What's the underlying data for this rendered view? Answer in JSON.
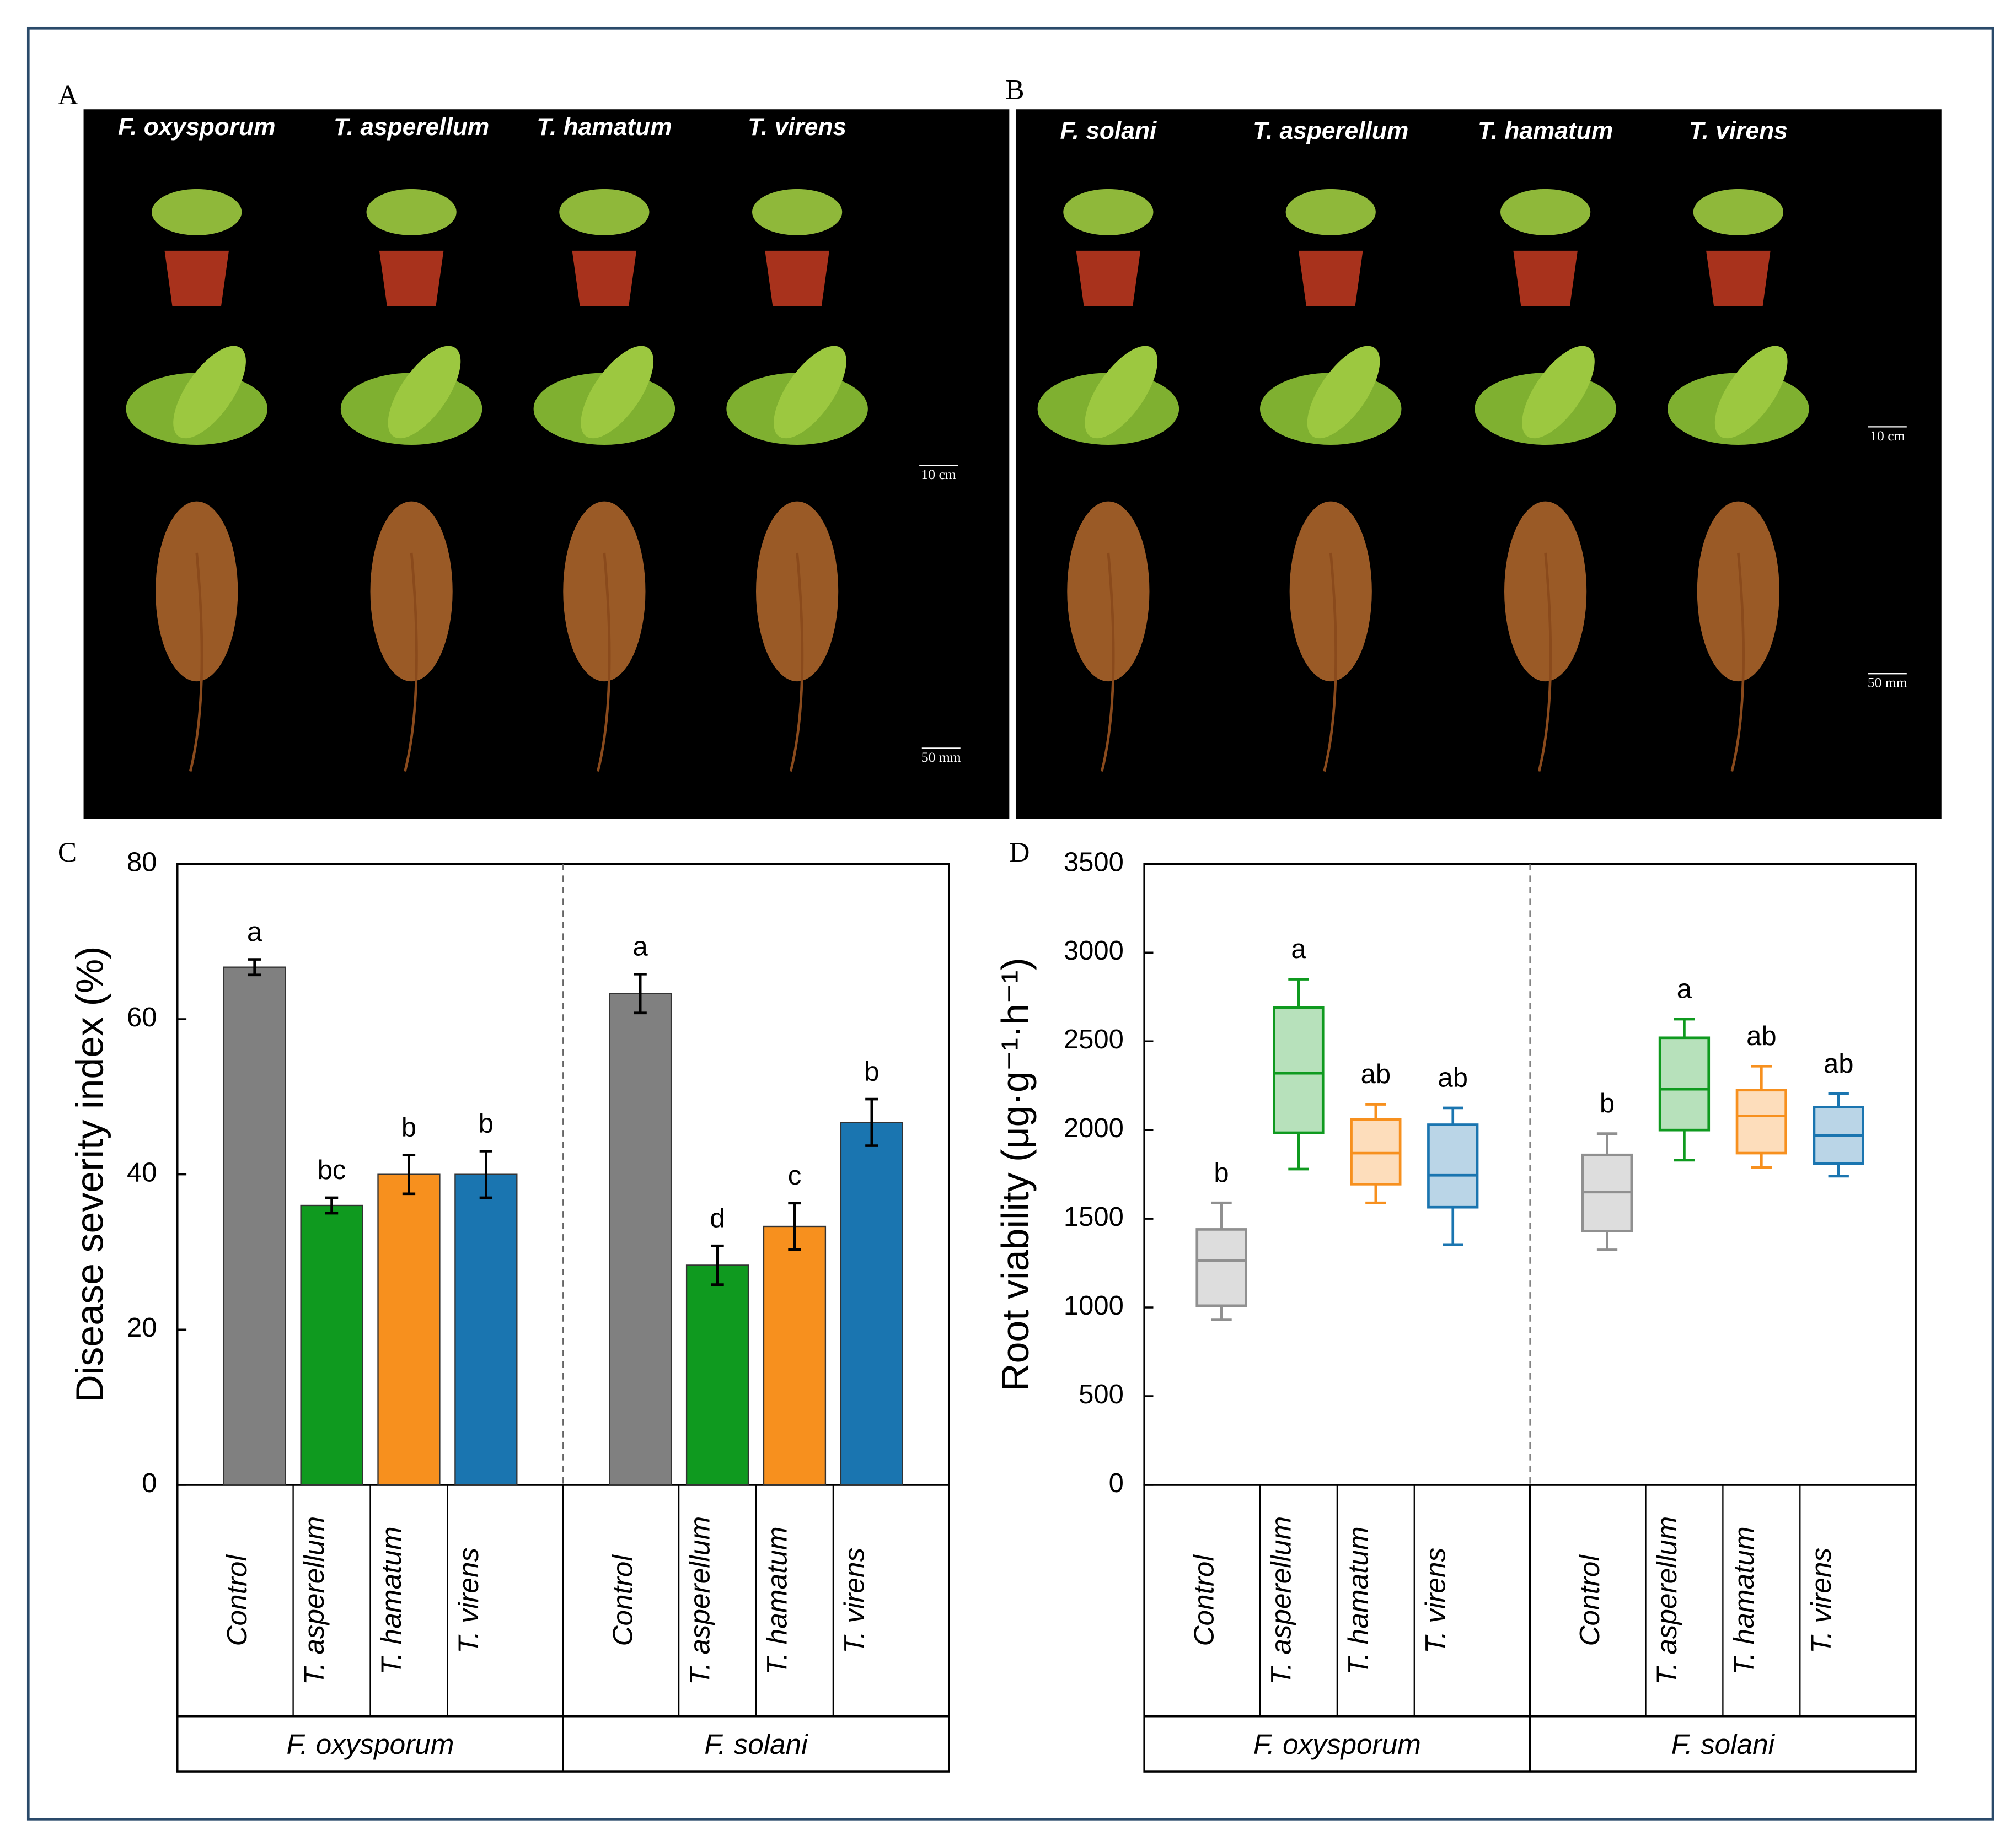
{
  "photo_panels": [
    {
      "label": "A",
      "titles": [
        "F. oxysporum",
        "T. asperellum",
        "T. hamatum",
        "T. virens"
      ],
      "scale_bars": [
        "10 cm",
        "50 mm"
      ]
    },
    {
      "label": "B",
      "titles": [
        "F. solani",
        "T. asperellum",
        "T. hamatum",
        "T. virens"
      ],
      "scale_bars": [
        "10 cm",
        "50 mm"
      ]
    }
  ],
  "chart_data": [
    {
      "type": "bar",
      "panel_label": "C",
      "y_label": "Disease severity index (%)",
      "categories": [
        "Control",
        "T. asperellum",
        "T. hamatum",
        "T. virens",
        "Control",
        "T. asperellum",
        "T. hamatum",
        "T. virens"
      ],
      "groups": [
        "F. oxysporum",
        "F. solani"
      ],
      "values": [
        66.7,
        36,
        40,
        40,
        63.3,
        28.3,
        33.3,
        46.7
      ],
      "errors": [
        1,
        1,
        2.5,
        3,
        2.5,
        2.5,
        3,
        3
      ],
      "colors": [
        "#808080",
        "#0f9a1f",
        "#f7901e",
        "#1a75b0",
        "#808080",
        "#0f9a1f",
        "#f7901e",
        "#1a75b0"
      ],
      "letters": [
        "a",
        "bc",
        "b",
        "b",
        "a",
        "d",
        "c",
        "b"
      ],
      "ylim": [
        0,
        80
      ],
      "yticks": [
        0,
        20,
        40,
        60,
        80
      ]
    },
    {
      "type": "box",
      "panel_label": "D",
      "y_label": "Root viability (μg·g⁻¹·h⁻¹)",
      "categories": [
        "Control",
        "T. asperellum",
        "T. hamatum",
        "T. virens",
        "Control",
        "T. asperellum",
        "T. hamatum",
        "T. virens"
      ],
      "groups": [
        "F. oxysporum",
        "F. solani"
      ],
      "min": [
        930,
        1780,
        1590,
        1355,
        1325,
        1830,
        1790,
        1740
      ],
      "q1": [
        1010,
        1985,
        1695,
        1565,
        1430,
        2000,
        1870,
        1810
      ],
      "median": [
        1265,
        2320,
        1870,
        1745,
        1650,
        2230,
        2080,
        1970
      ],
      "q3": [
        1440,
        2690,
        2060,
        2030,
        1860,
        2520,
        2225,
        2130
      ],
      "max": [
        1590,
        2850,
        2145,
        2125,
        1980,
        2625,
        2360,
        2205
      ],
      "colors": [
        "#909090",
        "#0f9a1f",
        "#f7901e",
        "#1a75b0",
        "#909090",
        "#0f9a1f",
        "#f7901e",
        "#1a75b0"
      ],
      "letters": [
        "b",
        "a",
        "ab",
        "ab",
        "b",
        "a",
        "ab",
        "ab"
      ],
      "ylim": [
        0,
        3500
      ],
      "yticks": [
        0,
        500,
        1000,
        1500,
        2000,
        2500,
        3000,
        3500
      ]
    }
  ]
}
